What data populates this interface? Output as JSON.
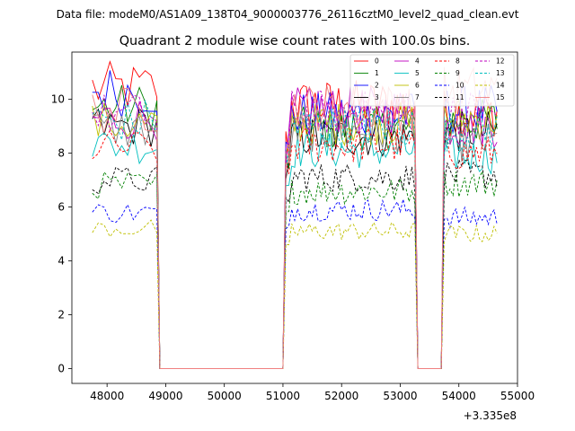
{
  "suptitle": "Data file: modeM0/AS1A09_138T04_9000003776_26116cztM0_level2_quad_clean.evt",
  "chart_data": {
    "type": "line",
    "title": "Quadrant 2 module wise count rates with 100.0s bins.",
    "xlabel": "",
    "ylabel": "",
    "x_offset_label": "+3.335e8",
    "xlim": [
      47400,
      55000
    ],
    "ylim": [
      -0.55,
      11.75
    ],
    "x_ticks": [
      48000,
      49000,
      50000,
      51000,
      52000,
      53000,
      54000,
      55000
    ],
    "y_ticks": [
      0,
      2,
      4,
      6,
      8,
      10
    ],
    "gaps": [
      [
        48900,
        51000
      ],
      [
        53300,
        53700
      ]
    ],
    "segments": [
      {
        "start": 47750,
        "end": 48850
      },
      {
        "start": 51050,
        "end": 53250
      },
      {
        "start": 53750,
        "end": 54650
      }
    ],
    "legend_position": "top-right",
    "series": [
      {
        "name": "0",
        "color": "#ff0000",
        "dash": false,
        "levels": [
          10.4,
          9.8,
          9.5
        ]
      },
      {
        "name": "1",
        "color": "#008000",
        "dash": false,
        "levels": [
          9.7,
          8.9,
          9.2
        ]
      },
      {
        "name": "2",
        "color": "#0000ff",
        "dash": false,
        "levels": [
          10.3,
          9.4,
          9.6
        ]
      },
      {
        "name": "3",
        "color": "#000000",
        "dash": false,
        "levels": [
          9.0,
          8.6,
          8.8
        ]
      },
      {
        "name": "4",
        "color": "#bf00bf",
        "dash": false,
        "levels": [
          9.3,
          9.6,
          9.0
        ]
      },
      {
        "name": "5",
        "color": "#00bfbf",
        "dash": false,
        "levels": [
          8.3,
          8.1,
          7.9
        ]
      },
      {
        "name": "6",
        "color": "#bfbf00",
        "dash": false,
        "levels": [
          9.1,
          9.1,
          9.3
        ]
      },
      {
        "name": "7",
        "color": "#808080",
        "dash": false,
        "levels": [
          8.9,
          8.8,
          8.4
        ]
      },
      {
        "name": "8",
        "color": "#ff0000",
        "dash": true,
        "levels": [
          8.2,
          8.3,
          8.0
        ]
      },
      {
        "name": "9",
        "color": "#008000",
        "dash": true,
        "levels": [
          6.8,
          6.6,
          6.9
        ]
      },
      {
        "name": "10",
        "color": "#0000ff",
        "dash": true,
        "levels": [
          5.8,
          5.9,
          5.6
        ]
      },
      {
        "name": "11",
        "color": "#000000",
        "dash": true,
        "levels": [
          7.0,
          7.1,
          7.2
        ]
      },
      {
        "name": "12",
        "color": "#bf00bf",
        "dash": true,
        "levels": [
          9.4,
          9.5,
          9.5
        ]
      },
      {
        "name": "13",
        "color": "#00bfbf",
        "dash": true,
        "levels": [
          9.2,
          9.0,
          8.8
        ]
      },
      {
        "name": "14",
        "color": "#bfbf00",
        "dash": true,
        "levels": [
          5.2,
          5.1,
          5.0
        ]
      },
      {
        "name": "15",
        "color": "#f08080",
        "dash": false,
        "levels": [
          9.6,
          9.7,
          10.3
        ]
      }
    ]
  }
}
